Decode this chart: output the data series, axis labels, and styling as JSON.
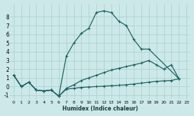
{
  "xlabel": "Humidex (Indice chaleur)",
  "bg_color": "#cce8e8",
  "grid_color": "#a8cece",
  "line_color": "#1a6060",
  "xlim": [
    -0.5,
    23.5
  ],
  "ylim": [
    -1.5,
    9.5
  ],
  "xticks": [
    0,
    1,
    2,
    3,
    4,
    5,
    6,
    7,
    8,
    9,
    10,
    11,
    12,
    13,
    14,
    15,
    16,
    17,
    18,
    19,
    20,
    21,
    22,
    23
  ],
  "yticks": [
    -1,
    0,
    1,
    2,
    3,
    4,
    5,
    6,
    7,
    8
  ],
  "line1_x": [
    0,
    1,
    2,
    3,
    4,
    5,
    6,
    7,
    8,
    9,
    10,
    11,
    12,
    13,
    14,
    15,
    16,
    17,
    18,
    22
  ],
  "line1_y": [
    1.3,
    0.0,
    0.5,
    -0.4,
    -0.5,
    -0.4,
    -1.1,
    3.5,
    5.0,
    6.1,
    6.7,
    8.5,
    8.7,
    8.5,
    7.5,
    7.0,
    5.4,
    4.3,
    4.3,
    0.9
  ],
  "line2_x": [
    0,
    1,
    2,
    3,
    4,
    5,
    6,
    7,
    8,
    9,
    10,
    11,
    12,
    13,
    14,
    15,
    16,
    17,
    18,
    19,
    20,
    21,
    22
  ],
  "line2_y": [
    1.3,
    0.0,
    0.5,
    -0.4,
    -0.5,
    -0.4,
    -1.1,
    -0.2,
    0.2,
    0.7,
    1.0,
    1.3,
    1.6,
    1.9,
    2.1,
    2.3,
    2.5,
    2.7,
    3.0,
    2.5,
    2.0,
    2.5,
    0.9
  ],
  "line3_x": [
    0,
    1,
    2,
    3,
    4,
    5,
    6,
    7,
    8,
    9,
    10,
    11,
    12,
    13,
    14,
    15,
    16,
    17,
    18,
    19,
    20,
    21,
    22
  ],
  "line3_y": [
    1.3,
    0.0,
    0.5,
    -0.4,
    -0.5,
    -0.4,
    -1.1,
    -0.3,
    -0.2,
    -0.1,
    -0.05,
    0.0,
    0.05,
    0.1,
    0.15,
    0.2,
    0.3,
    0.4,
    0.5,
    0.6,
    0.65,
    0.7,
    0.9
  ]
}
